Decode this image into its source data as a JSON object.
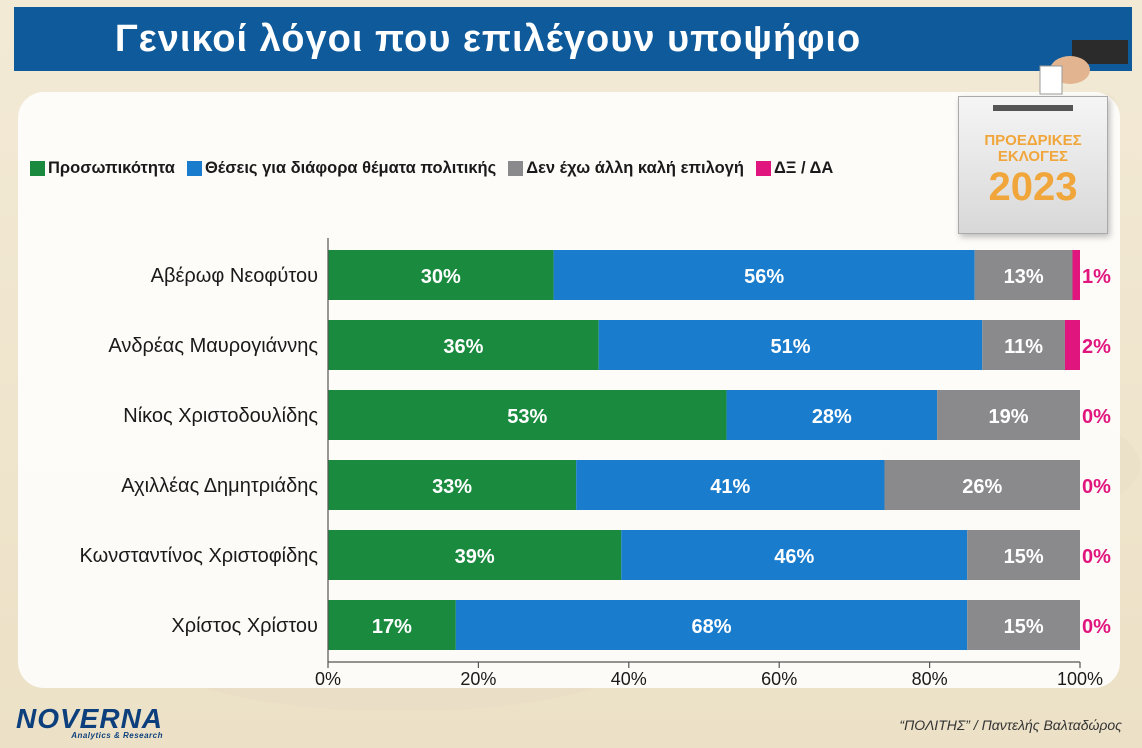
{
  "title": "Γενικοί λόγοι που επιλέγουν υποψήφιο",
  "legend": [
    {
      "label": "Προσωπικότητα",
      "color": "#1a8a3f"
    },
    {
      "label": "Θέσεις για διάφορα θέματα πολιτικής",
      "color": "#1a7ccc"
    },
    {
      "label": "Δεν έχω άλλη καλή επιλογή",
      "color": "#8a8a8c"
    },
    {
      "label": "ΔΞ / ΔΑ",
      "color": "#e0157e"
    }
  ],
  "badge": {
    "line1": "ΠΡΟΕΔΡΙΚΕΣ",
    "line2": "ΕΚΛΟΓΕΣ",
    "year": "2023"
  },
  "logo": {
    "name": "NOVERNA",
    "sub": "Analytics & Research"
  },
  "credit": "“ΠΟΛΙΤΗΣ” / Παντελής Βαλταδώρος",
  "chart_data": {
    "type": "bar",
    "orientation": "horizontal",
    "stacked": true,
    "categories": [
      "Αβέρωφ Νεοφύτου",
      "Ανδρέας Μαυρογιάννης",
      "Νίκος Χριστοδουλίδης",
      "Αχιλλέας Δημητριάδης",
      "Κωνσταντίνος Χριστοφίδης",
      "Χρίστος Χρίστου"
    ],
    "series": [
      {
        "name": "Προσωπικότητα",
        "color": "#1a8a3f",
        "values": [
          30,
          36,
          53,
          33,
          39,
          17
        ]
      },
      {
        "name": "Θέσεις για διάφορα θέματα πολιτικής",
        "color": "#1a7ccc",
        "values": [
          56,
          51,
          28,
          41,
          46,
          68
        ]
      },
      {
        "name": "Δεν έχω άλλη καλή επιλογή",
        "color": "#8a8a8c",
        "values": [
          13,
          11,
          19,
          26,
          15,
          15
        ]
      },
      {
        "name": "ΔΞ / ΔΑ",
        "color": "#e0157e",
        "values": [
          1,
          2,
          0,
          0,
          0,
          0
        ]
      }
    ],
    "data_labels": [
      [
        "30%",
        "56%",
        "13%",
        "1%"
      ],
      [
        "36%",
        "51%",
        "11%",
        "2%"
      ],
      [
        "53%",
        "28%",
        "19%",
        "0%"
      ],
      [
        "33%",
        "41%",
        "26%",
        "0%"
      ],
      [
        "39%",
        "46%",
        "15%",
        "0%"
      ],
      [
        "17%",
        "68%",
        "15%",
        "0%"
      ]
    ],
    "x_ticks": [
      "0%",
      "20%",
      "40%",
      "60%",
      "80%",
      "100%"
    ],
    "xlim": [
      0,
      100
    ],
    "legend_position": "top-left",
    "grid": false
  }
}
